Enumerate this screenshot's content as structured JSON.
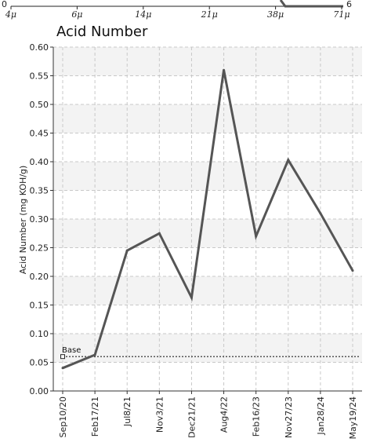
{
  "top_strip": {
    "x_ticks": [
      "4μ",
      "6μ",
      "14μ",
      "21μ",
      "38μ",
      "71μ"
    ],
    "y_left": "0",
    "y_right": "6"
  },
  "chart_data": {
    "type": "line",
    "title": "Acid Number",
    "ylabel": "Acid Number (mg KOH/g)",
    "xlabel": "",
    "ylim": [
      0,
      0.6
    ],
    "y_ticks": [
      "0.00",
      "0.05",
      "0.10",
      "0.15",
      "0.20",
      "0.25",
      "0.30",
      "0.35",
      "0.40",
      "0.45",
      "0.50",
      "0.55",
      "0.60"
    ],
    "categories": [
      "Sep10/20",
      "Feb17/21",
      "Jul8/21",
      "Nov3/21",
      "Dec21/21",
      "Aug4/22",
      "Feb16/23",
      "Nov27/23",
      "Jan28/24",
      "May19/24"
    ],
    "series": [
      {
        "values": [
          0.04,
          0.063,
          0.245,
          0.275,
          0.163,
          0.56,
          0.27,
          0.403,
          0.31,
          0.21
        ],
        "color": "#555555"
      }
    ],
    "baseline": {
      "label": "Base",
      "value": 0.06
    },
    "grid": true,
    "band_color": "#f3f3f3"
  }
}
